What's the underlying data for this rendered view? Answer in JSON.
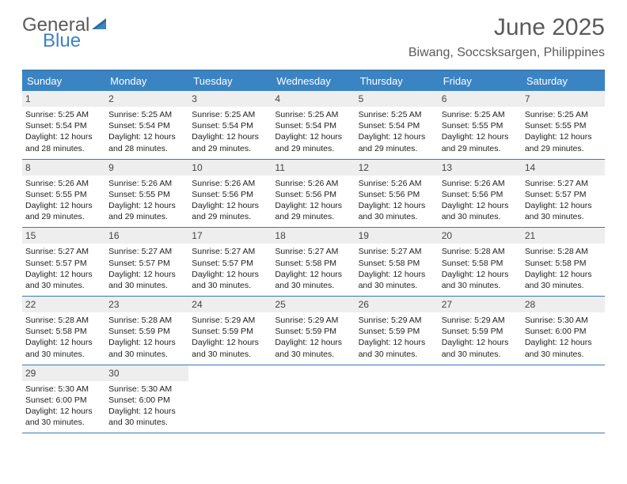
{
  "logo": {
    "general": "General",
    "blue": "Blue"
  },
  "title": "June 2025",
  "location": "Biwang, Soccsksargen, Philippines",
  "colors": {
    "header_bg": "#3a84c4",
    "border": "#3a7ab0",
    "daynum_bg": "#eeeeee",
    "text": "#222222",
    "title_text": "#5a5a5a",
    "logo_gray": "#5a5a5a",
    "logo_blue": "#3a84c4"
  },
  "day_headers": [
    "Sunday",
    "Monday",
    "Tuesday",
    "Wednesday",
    "Thursday",
    "Friday",
    "Saturday"
  ],
  "weeks": [
    [
      {
        "n": "1",
        "sr": "5:25 AM",
        "ss": "5:54 PM",
        "dl": "12 hours and 28 minutes."
      },
      {
        "n": "2",
        "sr": "5:25 AM",
        "ss": "5:54 PM",
        "dl": "12 hours and 28 minutes."
      },
      {
        "n": "3",
        "sr": "5:25 AM",
        "ss": "5:54 PM",
        "dl": "12 hours and 29 minutes."
      },
      {
        "n": "4",
        "sr": "5:25 AM",
        "ss": "5:54 PM",
        "dl": "12 hours and 29 minutes."
      },
      {
        "n": "5",
        "sr": "5:25 AM",
        "ss": "5:54 PM",
        "dl": "12 hours and 29 minutes."
      },
      {
        "n": "6",
        "sr": "5:25 AM",
        "ss": "5:55 PM",
        "dl": "12 hours and 29 minutes."
      },
      {
        "n": "7",
        "sr": "5:25 AM",
        "ss": "5:55 PM",
        "dl": "12 hours and 29 minutes."
      }
    ],
    [
      {
        "n": "8",
        "sr": "5:26 AM",
        "ss": "5:55 PM",
        "dl": "12 hours and 29 minutes."
      },
      {
        "n": "9",
        "sr": "5:26 AM",
        "ss": "5:55 PM",
        "dl": "12 hours and 29 minutes."
      },
      {
        "n": "10",
        "sr": "5:26 AM",
        "ss": "5:56 PM",
        "dl": "12 hours and 29 minutes."
      },
      {
        "n": "11",
        "sr": "5:26 AM",
        "ss": "5:56 PM",
        "dl": "12 hours and 29 minutes."
      },
      {
        "n": "12",
        "sr": "5:26 AM",
        "ss": "5:56 PM",
        "dl": "12 hours and 30 minutes."
      },
      {
        "n": "13",
        "sr": "5:26 AM",
        "ss": "5:56 PM",
        "dl": "12 hours and 30 minutes."
      },
      {
        "n": "14",
        "sr": "5:27 AM",
        "ss": "5:57 PM",
        "dl": "12 hours and 30 minutes."
      }
    ],
    [
      {
        "n": "15",
        "sr": "5:27 AM",
        "ss": "5:57 PM",
        "dl": "12 hours and 30 minutes."
      },
      {
        "n": "16",
        "sr": "5:27 AM",
        "ss": "5:57 PM",
        "dl": "12 hours and 30 minutes."
      },
      {
        "n": "17",
        "sr": "5:27 AM",
        "ss": "5:57 PM",
        "dl": "12 hours and 30 minutes."
      },
      {
        "n": "18",
        "sr": "5:27 AM",
        "ss": "5:58 PM",
        "dl": "12 hours and 30 minutes."
      },
      {
        "n": "19",
        "sr": "5:27 AM",
        "ss": "5:58 PM",
        "dl": "12 hours and 30 minutes."
      },
      {
        "n": "20",
        "sr": "5:28 AM",
        "ss": "5:58 PM",
        "dl": "12 hours and 30 minutes."
      },
      {
        "n": "21",
        "sr": "5:28 AM",
        "ss": "5:58 PM",
        "dl": "12 hours and 30 minutes."
      }
    ],
    [
      {
        "n": "22",
        "sr": "5:28 AM",
        "ss": "5:58 PM",
        "dl": "12 hours and 30 minutes."
      },
      {
        "n": "23",
        "sr": "5:28 AM",
        "ss": "5:59 PM",
        "dl": "12 hours and 30 minutes."
      },
      {
        "n": "24",
        "sr": "5:29 AM",
        "ss": "5:59 PM",
        "dl": "12 hours and 30 minutes."
      },
      {
        "n": "25",
        "sr": "5:29 AM",
        "ss": "5:59 PM",
        "dl": "12 hours and 30 minutes."
      },
      {
        "n": "26",
        "sr": "5:29 AM",
        "ss": "5:59 PM",
        "dl": "12 hours and 30 minutes."
      },
      {
        "n": "27",
        "sr": "5:29 AM",
        "ss": "5:59 PM",
        "dl": "12 hours and 30 minutes."
      },
      {
        "n": "28",
        "sr": "5:30 AM",
        "ss": "6:00 PM",
        "dl": "12 hours and 30 minutes."
      }
    ],
    [
      {
        "n": "29",
        "sr": "5:30 AM",
        "ss": "6:00 PM",
        "dl": "12 hours and 30 minutes."
      },
      {
        "n": "30",
        "sr": "5:30 AM",
        "ss": "6:00 PM",
        "dl": "12 hours and 30 minutes."
      },
      null,
      null,
      null,
      null,
      null
    ]
  ],
  "labels": {
    "sunrise": "Sunrise:",
    "sunset": "Sunset:",
    "daylight": "Daylight:"
  }
}
